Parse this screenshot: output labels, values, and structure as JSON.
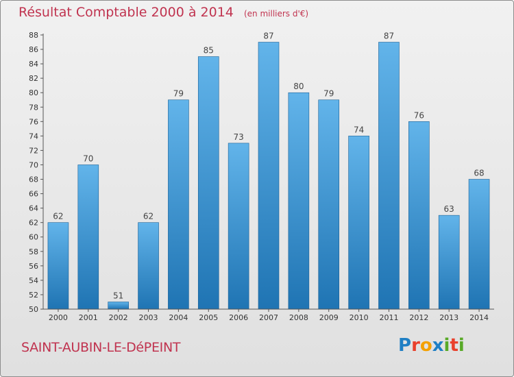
{
  "header": {
    "title": "Résultat Comptable 2000 à 2014",
    "subtitle": "(en milliers d'€)"
  },
  "footer": {
    "commune": "SAINT-AUBIN-LE-DéPEINT"
  },
  "logo": {
    "letters": [
      "P",
      "r",
      "o",
      "x",
      "i",
      "t",
      "i"
    ],
    "colors": [
      "#1f7fc4",
      "#e9402c",
      "#f4a000",
      "#1f7fc4",
      "#58a927",
      "#e9402c",
      "#58a927"
    ]
  },
  "colors": {
    "bar_top": "#62b4ea",
    "bar_bottom": "#1f74b3",
    "text": "#333333",
    "accent": "#c0334f"
  },
  "chart_data": {
    "type": "bar",
    "title": "Résultat Comptable 2000 à 2014",
    "subtitle": "(en milliers d'€)",
    "xlabel": "",
    "ylabel": "",
    "categories": [
      "2000",
      "2001",
      "2002",
      "2003",
      "2004",
      "2005",
      "2006",
      "2007",
      "2008",
      "2009",
      "2010",
      "2011",
      "2012",
      "2013",
      "2014"
    ],
    "values": [
      62,
      70,
      51,
      62,
      79,
      85,
      73,
      87,
      80,
      79,
      74,
      87,
      76,
      63,
      68
    ],
    "ylim": [
      50,
      88
    ],
    "yticks": [
      50,
      52,
      54,
      56,
      58,
      60,
      62,
      64,
      66,
      68,
      70,
      72,
      74,
      76,
      78,
      80,
      82,
      84,
      86,
      88
    ],
    "grid": false,
    "legend": "none"
  }
}
